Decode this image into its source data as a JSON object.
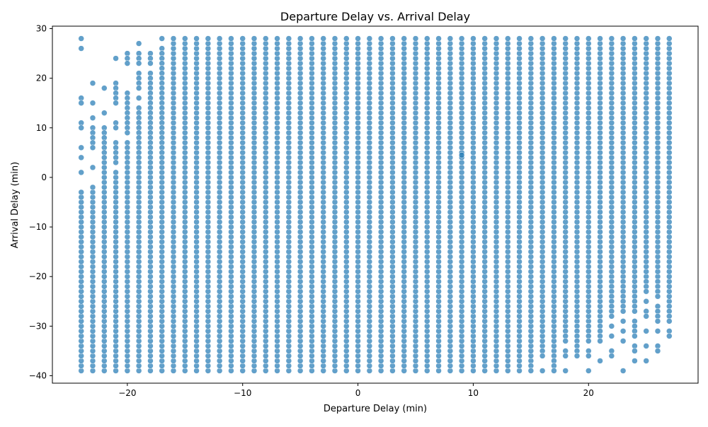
{
  "chart_data": {
    "type": "scatter",
    "title": "Departure Delay vs. Arrival Delay",
    "xlabel": "Departure Delay (min)",
    "ylabel": "Arrival Delay (min)",
    "xlim": [
      -26.5,
      29.5
    ],
    "ylim": [
      -41.5,
      30.5
    ],
    "xticks": [
      -20,
      -10,
      0,
      10,
      20
    ],
    "yticks": [
      -40,
      -30,
      -20,
      -10,
      0,
      10,
      20,
      30
    ],
    "tick_labels_x": [
      "−20",
      "−10",
      "0",
      "10",
      "20"
    ],
    "tick_labels_y": [
      "−40",
      "−30",
      "−20",
      "−10",
      "0",
      "10",
      "20",
      "30"
    ],
    "grid": false,
    "legend": "none",
    "marker_color": "#1f77b4",
    "marker_alpha": 0.7,
    "x_range_integers": [
      -24,
      27
    ],
    "y_range_integers": [
      -39,
      28
    ],
    "description_of_density": "nearly every integer (departure, arrival) pair is present; sparse upper-left region for departure -24..-17 and sparse lower-right region for departure 15..27",
    "sparse_points": [
      [
        -24,
        28
      ],
      [
        -24,
        26
      ],
      [
        -24,
        16
      ],
      [
        -24,
        15
      ],
      [
        -24,
        11
      ],
      [
        -24,
        10
      ],
      [
        -24,
        6
      ],
      [
        -24,
        4
      ],
      [
        -24,
        1
      ],
      [
        -23,
        19
      ],
      [
        -23,
        15
      ],
      [
        -23,
        12
      ],
      [
        -23,
        10
      ],
      [
        -23,
        9
      ],
      [
        -23,
        8
      ],
      [
        -23,
        7
      ],
      [
        -23,
        6
      ],
      [
        -23,
        2
      ],
      [
        -22,
        18
      ],
      [
        -22,
        13
      ],
      [
        -22,
        10
      ],
      [
        -22,
        9
      ],
      [
        -22,
        8
      ],
      [
        -22,
        7
      ],
      [
        -22,
        6
      ],
      [
        -22,
        5
      ],
      [
        -22,
        4
      ],
      [
        -21,
        24
      ],
      [
        -21,
        19
      ],
      [
        -21,
        18
      ],
      [
        -21,
        17
      ],
      [
        -21,
        16
      ],
      [
        -21,
        15
      ],
      [
        -21,
        11
      ],
      [
        -21,
        10
      ],
      [
        -21,
        7
      ],
      [
        -21,
        6
      ],
      [
        -21,
        5
      ],
      [
        -21,
        4
      ],
      [
        -21,
        3
      ],
      [
        -21,
        1
      ],
      [
        -20,
        25
      ],
      [
        -20,
        24
      ],
      [
        -20,
        23
      ],
      [
        -20,
        17
      ],
      [
        -20,
        16
      ],
      [
        -20,
        15
      ],
      [
        -20,
        14
      ],
      [
        -20,
        13
      ],
      [
        -20,
        12
      ],
      [
        -20,
        11
      ],
      [
        -20,
        10
      ],
      [
        -20,
        9
      ],
      [
        -20,
        7
      ],
      [
        -20,
        6
      ],
      [
        -20,
        5
      ],
      [
        -20,
        4
      ],
      [
        -20,
        3
      ],
      [
        -20,
        2
      ],
      [
        -19,
        27
      ],
      [
        -19,
        25
      ],
      [
        -19,
        24
      ],
      [
        -19,
        23
      ],
      [
        -19,
        21
      ],
      [
        -19,
        20
      ],
      [
        -19,
        19
      ],
      [
        -19,
        18
      ],
      [
        -19,
        16
      ],
      [
        -19,
        14
      ],
      [
        -19,
        13
      ],
      [
        -19,
        12
      ],
      [
        -19,
        11
      ],
      [
        -19,
        10
      ],
      [
        -19,
        9
      ],
      [
        -19,
        8
      ],
      [
        -19,
        7
      ],
      [
        -19,
        6
      ],
      [
        -19,
        5
      ],
      [
        -19,
        4
      ],
      [
        -19,
        3
      ],
      [
        -18,
        25
      ],
      [
        -18,
        24
      ],
      [
        -18,
        23
      ],
      [
        -18,
        21
      ],
      [
        -18,
        20
      ],
      [
        -18,
        19
      ],
      [
        -18,
        18
      ],
      [
        -18,
        17
      ],
      [
        -18,
        16
      ],
      [
        -18,
        15
      ],
      [
        -18,
        14
      ],
      [
        -18,
        13
      ],
      [
        -18,
        12
      ],
      [
        -18,
        11
      ],
      [
        -18,
        10
      ],
      [
        -18,
        9
      ],
      [
        -18,
        8
      ],
      [
        -18,
        7
      ],
      [
        -18,
        6
      ],
      [
        -18,
        5
      ],
      [
        -18,
        4
      ],
      [
        -18,
        3
      ],
      [
        -17,
        28
      ],
      [
        -17,
        26
      ],
      [
        -17,
        25
      ],
      [
        -17,
        24
      ],
      [
        -17,
        23
      ],
      [
        -17,
        22
      ],
      [
        -17,
        21
      ],
      [
        -17,
        20
      ],
      [
        -17,
        19
      ],
      [
        -17,
        18
      ],
      [
        -17,
        17
      ],
      [
        -17,
        16
      ],
      [
        -17,
        15
      ],
      [
        -17,
        14
      ],
      [
        -17,
        13
      ],
      [
        -17,
        12
      ],
      [
        -17,
        11
      ],
      [
        -17,
        10
      ],
      [
        -17,
        9
      ],
      [
        -17,
        8
      ],
      [
        -17,
        7
      ],
      [
        -17,
        6
      ],
      [
        -17,
        5
      ],
      [
        -17,
        4
      ],
      [
        -17,
        3
      ],
      [
        9,
        4.5
      ],
      [
        15,
        -38
      ],
      [
        15,
        -39
      ],
      [
        16,
        -35
      ],
      [
        16,
        -36
      ],
      [
        16,
        -39
      ],
      [
        17,
        -36
      ],
      [
        17,
        -37
      ],
      [
        17,
        -38
      ],
      [
        17,
        -39
      ],
      [
        18,
        -31
      ],
      [
        18,
        -32
      ],
      [
        18,
        -33
      ],
      [
        18,
        -35
      ],
      [
        18,
        -36
      ],
      [
        18,
        -39
      ],
      [
        19,
        -30
      ],
      [
        19,
        -31
      ],
      [
        19,
        -32
      ],
      [
        19,
        -33
      ],
      [
        19,
        -34
      ],
      [
        19,
        -35
      ],
      [
        19,
        -36
      ],
      [
        20,
        -30
      ],
      [
        20,
        -31
      ],
      [
        20,
        -32
      ],
      [
        20,
        -33
      ],
      [
        20,
        -35
      ],
      [
        20,
        -36
      ],
      [
        20,
        -39
      ],
      [
        21,
        -29
      ],
      [
        21,
        -30
      ],
      [
        21,
        -31
      ],
      [
        21,
        -32
      ],
      [
        21,
        -33
      ],
      [
        21,
        -37
      ],
      [
        22,
        -21
      ],
      [
        22,
        -22
      ],
      [
        22,
        -23
      ],
      [
        22,
        -24
      ],
      [
        22,
        -25
      ],
      [
        22,
        -26
      ],
      [
        22,
        -27
      ],
      [
        22,
        -28
      ],
      [
        22,
        -30
      ],
      [
        22,
        -32
      ],
      [
        22,
        -35
      ],
      [
        22,
        -36
      ],
      [
        23,
        -21
      ],
      [
        23,
        -22
      ],
      [
        23,
        -23
      ],
      [
        23,
        -24
      ],
      [
        23,
        -25
      ],
      [
        23,
        -26
      ],
      [
        23,
        -27
      ],
      [
        23,
        -29
      ],
      [
        23,
        -31
      ],
      [
        23,
        -33
      ],
      [
        23,
        -39
      ],
      [
        24,
        -24
      ],
      [
        24,
        -25
      ],
      [
        24,
        -26
      ],
      [
        24,
        -27
      ],
      [
        24,
        -29
      ],
      [
        24,
        -30
      ],
      [
        24,
        -31
      ],
      [
        24,
        -32
      ],
      [
        24,
        -34
      ],
      [
        24,
        -35
      ],
      [
        24,
        -37
      ],
      [
        25,
        -21
      ],
      [
        25,
        -22
      ],
      [
        25,
        -23
      ],
      [
        25,
        -25
      ],
      [
        25,
        -27
      ],
      [
        25,
        -28
      ],
      [
        25,
        -31
      ],
      [
        25,
        -34
      ],
      [
        25,
        -37
      ],
      [
        26,
        -21
      ],
      [
        26,
        -22
      ],
      [
        26,
        -23
      ],
      [
        26,
        -24
      ],
      [
        26,
        -26
      ],
      [
        26,
        -27
      ],
      [
        26,
        -28
      ],
      [
        26,
        -29
      ],
      [
        26,
        -31
      ],
      [
        26,
        -34
      ],
      [
        26,
        -35
      ],
      [
        27,
        -26
      ],
      [
        27,
        -27
      ],
      [
        27,
        -28
      ],
      [
        27,
        -29
      ],
      [
        27,
        -31
      ],
      [
        27,
        -32
      ]
    ]
  }
}
